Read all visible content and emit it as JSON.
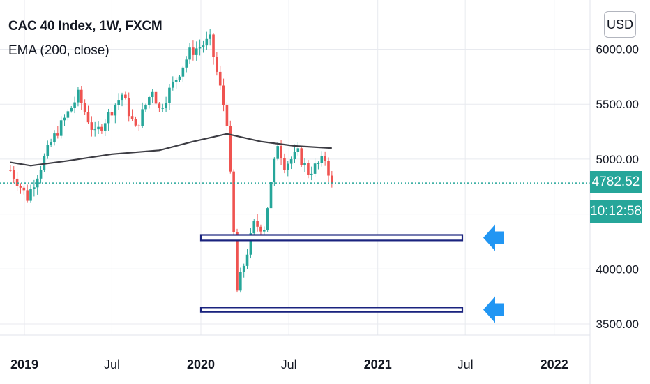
{
  "header": {
    "title": "CAC 40 Index, 1W, FXCM",
    "indicator": "EMA (200, close)",
    "currency_button": "USD"
  },
  "price_scale": {
    "labels": [
      "6000.00",
      "5500.00",
      "5000.00",
      "4000.00",
      "3500.00"
    ],
    "current_price": "4782.52",
    "countdown": "10:12:58"
  },
  "time_scale": {
    "labels": [
      {
        "text": "2019",
        "bold": true
      },
      {
        "text": "Jul",
        "bold": false
      },
      {
        "text": "2020",
        "bold": true
      },
      {
        "text": "Jul",
        "bold": false
      },
      {
        "text": "2021",
        "bold": true
      },
      {
        "text": "Jul",
        "bold": false
      },
      {
        "text": "2022",
        "bold": true
      }
    ]
  },
  "colors": {
    "up": "#26a69a",
    "down": "#ef5350",
    "ema": "#3d3d44",
    "zone_border": "#1a237e",
    "arrow": "#2196f3",
    "grid": "#e8eaef"
  },
  "chart_data": {
    "type": "candlestick",
    "symbol": "CAC 40 Index",
    "interval": "1W",
    "ylim": [
      3350,
      6380
    ],
    "current_price": 4782.52,
    "support_zones": [
      {
        "low": 4260,
        "high": 4310
      },
      {
        "low": 3610,
        "high": 3650
      }
    ],
    "ema_200": [
      {
        "date": "2018-12-03",
        "value": 4970
      },
      {
        "date": "2019-01-14",
        "value": 4940
      },
      {
        "date": "2019-04-01",
        "value": 4985
      },
      {
        "date": "2019-07-01",
        "value": 5045
      },
      {
        "date": "2019-10-07",
        "value": 5080
      },
      {
        "date": "2019-12-16",
        "value": 5160
      },
      {
        "date": "2020-02-24",
        "value": 5230
      },
      {
        "date": "2020-05-04",
        "value": 5160
      },
      {
        "date": "2020-07-13",
        "value": 5120
      },
      {
        "date": "2020-09-28",
        "value": 5100
      }
    ],
    "close_path": [
      {
        "date": "2018-12-03",
        "close": 4900
      },
      {
        "date": "2019-01-07",
        "close": 4650
      },
      {
        "date": "2019-02-25",
        "close": 5150
      },
      {
        "date": "2019-04-22",
        "close": 5580
      },
      {
        "date": "2019-05-27",
        "close": 5220
      },
      {
        "date": "2019-07-22",
        "close": 5590
      },
      {
        "date": "2019-08-19",
        "close": 5270
      },
      {
        "date": "2019-09-23",
        "close": 5640
      },
      {
        "date": "2019-10-07",
        "close": 5450
      },
      {
        "date": "2019-12-09",
        "close": 5970
      },
      {
        "date": "2020-01-20",
        "close": 6080
      },
      {
        "date": "2020-02-24",
        "close": 5350
      },
      {
        "date": "2020-03-16",
        "close": 3800
      },
      {
        "date": "2020-04-20",
        "close": 4400
      },
      {
        "date": "2020-05-11",
        "close": 4380
      },
      {
        "date": "2020-06-08",
        "close": 5150
      },
      {
        "date": "2020-06-22",
        "close": 4950
      },
      {
        "date": "2020-07-20",
        "close": 5050
      },
      {
        "date": "2020-08-10",
        "close": 4880
      },
      {
        "date": "2020-09-14",
        "close": 5000
      },
      {
        "date": "2020-09-28",
        "close": 4782.52
      }
    ]
  }
}
